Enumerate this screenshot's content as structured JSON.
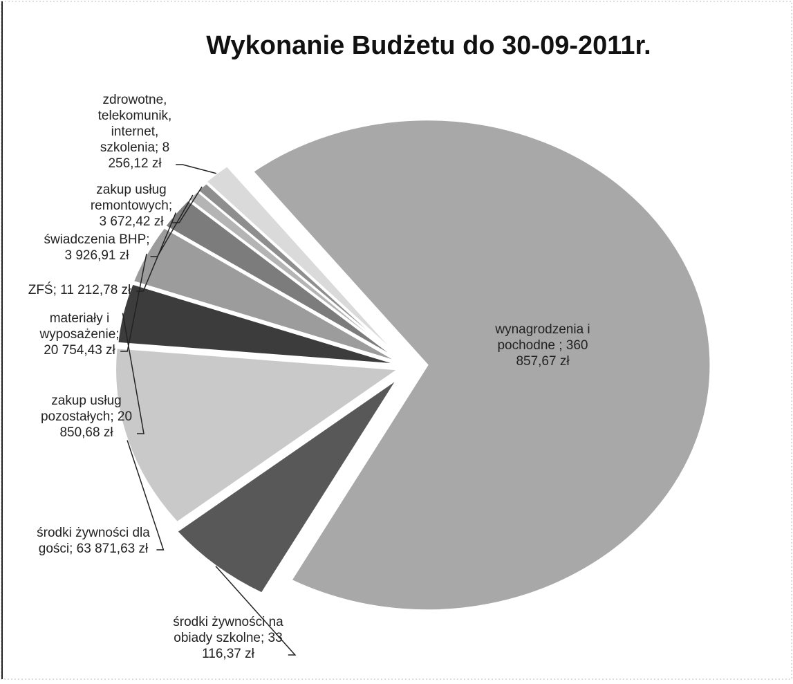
{
  "chart_data": {
    "type": "pie",
    "title": "Wykonanie Budżetu do 30-09-2011r.",
    "values": [
      360857.67,
      33116.37,
      63871.63,
      20850.68,
      20754.43,
      11212.78,
      3926.91,
      3672.42,
      8256.12
    ],
    "value_labels": [
      "wynagrodzenia i pochodne ; 360 857,67 zł",
      "środki żywności na obiady szkolne; 33 116,37 zł",
      "środki żywności dla gości; 63 871,63 zł",
      "zakup usług pozostałych; 20 850,68 zł",
      "materiały i wyposażenie; 20 754,43 zł",
      "ZFŚ; 11 212,78 zł",
      "świadczenia BHP; 3 926,91 zł",
      "zakup usług remontowych; 3 672,42 zł",
      "zdrowotne, telekomunik, internet, szkolenia; 8 256,12 zł"
    ],
    "colors": [
      "#a8a8a8",
      "#585858",
      "#c9c9c9",
      "#3c3c3c",
      "#9c9c9c",
      "#7c7c7c",
      "#b4b4b4",
      "#8e8e8e",
      "#dadada"
    ]
  }
}
